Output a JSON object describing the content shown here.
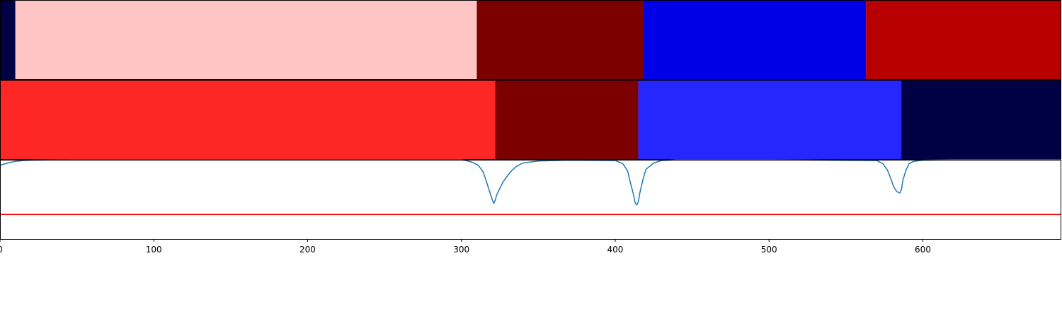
{
  "chart_data": [
    {
      "type": "heatmap",
      "panel": "top",
      "segments": [
        {
          "start": 0,
          "end": 10,
          "color": "#000045"
        },
        {
          "start": 10,
          "end": 310,
          "color": "#FFC4C4"
        },
        {
          "start": 310,
          "end": 418,
          "color": "#7D0000"
        },
        {
          "start": 418,
          "end": 563,
          "color": "#0000E8"
        },
        {
          "start": 563,
          "end": 690,
          "color": "#B80000"
        }
      ]
    },
    {
      "type": "heatmap",
      "panel": "middle",
      "segments": [
        {
          "start": 0,
          "end": 322,
          "color": "#FF2626"
        },
        {
          "start": 322,
          "end": 415,
          "color": "#7D0000"
        },
        {
          "start": 415,
          "end": 586,
          "color": "#2626FF"
        },
        {
          "start": 586,
          "end": 690,
          "color": "#000045"
        }
      ]
    },
    {
      "type": "line",
      "panel": "bottom",
      "xlim": [
        0,
        690
      ],
      "ylim": [
        0,
        1
      ],
      "series": [
        {
          "color": "#1f77b4",
          "x": [
            0,
            5,
            10,
            15,
            20,
            30,
            50,
            100,
            200,
            300,
            303,
            307,
            311,
            314,
            316,
            318,
            320,
            321,
            322,
            323,
            325,
            327,
            330,
            333,
            336,
            340,
            350,
            370,
            400,
            405,
            408,
            410,
            412,
            413,
            414,
            415,
            416,
            418,
            420,
            425,
            430,
            440,
            500,
            570,
            574,
            577,
            579,
            581,
            583,
            585,
            586,
            587,
            589,
            591,
            594,
            600,
            620,
            690
          ],
          "y": [
            0.93,
            0.96,
            0.98,
            0.99,
            0.995,
            0.998,
            1.0,
            1.0,
            1.0,
            1.0,
            0.99,
            0.97,
            0.93,
            0.85,
            0.74,
            0.62,
            0.5,
            0.45,
            0.49,
            0.56,
            0.64,
            0.72,
            0.8,
            0.87,
            0.92,
            0.96,
            0.985,
            0.995,
            0.99,
            0.95,
            0.86,
            0.7,
            0.55,
            0.45,
            0.43,
            0.47,
            0.58,
            0.75,
            0.88,
            0.96,
            0.99,
            1.0,
            1.0,
            0.99,
            0.95,
            0.87,
            0.77,
            0.66,
            0.6,
            0.58,
            0.62,
            0.74,
            0.87,
            0.95,
            0.98,
            0.995,
            1.0,
            1.0
          ]
        },
        {
          "color": "#ff0000",
          "x": [
            0,
            690
          ],
          "y": [
            0.31,
            0.31
          ]
        }
      ],
      "xticks": [
        0,
        100,
        200,
        300,
        400,
        500,
        600
      ],
      "xtick_labels": [
        "0",
        "100",
        "200",
        "300",
        "400",
        "500",
        "600"
      ]
    }
  ]
}
